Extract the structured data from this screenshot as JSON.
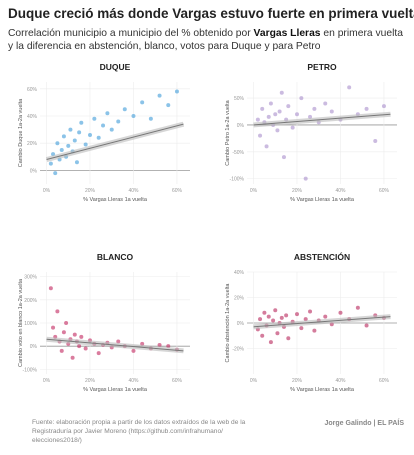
{
  "header": {
    "title": "Duque creció más donde Vargas estuvo fuerte en primera vuelta",
    "subtitle": [
      "Correlación municipio a municipio del % obtenido por ",
      "Vargas Lleras",
      " en primera vuelta y la diferencia en abstención, blanco, votos para Duque y para Petro"
    ]
  },
  "chart_data": [
    {
      "type": "scatter",
      "title": "DUQUE",
      "xlabel": "% Vargas Lleras 1a vuelta",
      "ylabel": "Cambio Duque 1a-2a vuelta",
      "color": "#3d9bd8",
      "xlim": [
        -3,
        66
      ],
      "ylim": [
        -10,
        65
      ],
      "xticks": [
        {
          "value": 0,
          "label": "0%"
        },
        {
          "value": 20,
          "label": "20%"
        },
        {
          "value": 40,
          "label": "40%"
        },
        {
          "value": 60,
          "label": "60%"
        }
      ],
      "yticks": [
        {
          "value": 0,
          "label": "0%"
        },
        {
          "value": 20,
          "label": "20%"
        },
        {
          "value": 40,
          "label": "40%"
        },
        {
          "value": 60,
          "label": "60%"
        }
      ],
      "x": [
        2,
        3,
        4,
        5,
        6,
        7,
        8,
        9,
        10,
        11,
        12,
        13,
        14,
        15,
        16,
        18,
        20,
        22,
        24,
        26,
        28,
        30,
        33,
        36,
        40,
        44,
        48,
        52,
        56,
        60
      ],
      "y": [
        5,
        12,
        -2,
        20,
        8,
        15,
        25,
        10,
        18,
        30,
        14,
        22,
        6,
        28,
        35,
        19,
        26,
        38,
        24,
        33,
        42,
        30,
        36,
        45,
        40,
        50,
        38,
        55,
        48,
        58
      ],
      "trend": {
        "x": [
          0,
          63
        ],
        "y": [
          8,
          34
        ]
      }
    },
    {
      "type": "scatter",
      "title": "PETRO",
      "xlabel": "% Vargas Lleras 1a vuelta",
      "ylabel": "Cambio Petro 1a-2a vuelta",
      "color": "#a98dcb",
      "xlim": [
        -3,
        66
      ],
      "ylim": [
        -110,
        80
      ],
      "xticks": [
        {
          "value": 0,
          "label": "0%"
        },
        {
          "value": 20,
          "label": "20%"
        },
        {
          "value": 40,
          "label": "40%"
        },
        {
          "value": 60,
          "label": "60%"
        }
      ],
      "yticks": [
        {
          "value": -100,
          "label": "-100%"
        },
        {
          "value": -50,
          "label": "-50%"
        },
        {
          "value": 0,
          "label": "0%"
        },
        {
          "value": 50,
          "label": "50%"
        }
      ],
      "x": [
        2,
        3,
        4,
        5,
        6,
        7,
        8,
        9,
        10,
        11,
        12,
        13,
        14,
        15,
        16,
        18,
        20,
        22,
        24,
        26,
        28,
        30,
        33,
        36,
        40,
        44,
        48,
        52,
        56,
        60
      ],
      "y": [
        10,
        -20,
        30,
        5,
        -40,
        15,
        40,
        0,
        20,
        -10,
        25,
        60,
        -60,
        10,
        35,
        -5,
        20,
        50,
        -100,
        15,
        30,
        5,
        40,
        25,
        10,
        70,
        20,
        30,
        -30,
        35
      ],
      "trend": {
        "x": [
          0,
          63
        ],
        "y": [
          0,
          20
        ]
      }
    },
    {
      "type": "scatter",
      "title": "BLANCO",
      "xlabel": "% Vargas Lleras 1a vuelta",
      "ylabel": "Cambio voto en blanco 1a-2a vuelta",
      "color": "#c2255e",
      "xlim": [
        -3,
        66
      ],
      "ylim": [
        -120,
        320
      ],
      "xticks": [
        {
          "value": 0,
          "label": "0%"
        },
        {
          "value": 20,
          "label": "20%"
        },
        {
          "value": 40,
          "label": "40%"
        },
        {
          "value": 60,
          "label": "60%"
        }
      ],
      "yticks": [
        {
          "value": -100,
          "label": "-100%"
        },
        {
          "value": 0,
          "label": "0%"
        },
        {
          "value": 100,
          "label": "100%"
        },
        {
          "value": 200,
          "label": "200%"
        },
        {
          "value": 300,
          "label": "300%"
        }
      ],
      "x": [
        2,
        3,
        4,
        5,
        6,
        7,
        8,
        9,
        10,
        11,
        12,
        13,
        14,
        15,
        16,
        18,
        20,
        22,
        24,
        26,
        28,
        30,
        33,
        36,
        40,
        44,
        48,
        52,
        56,
        60
      ],
      "y": [
        250,
        80,
        40,
        150,
        20,
        -20,
        60,
        100,
        10,
        30,
        -50,
        50,
        20,
        0,
        40,
        -10,
        25,
        10,
        -30,
        5,
        15,
        -5,
        20,
        0,
        -20,
        10,
        -10,
        5,
        0,
        -15
      ],
      "trend": {
        "x": [
          0,
          63
        ],
        "y": [
          30,
          -20
        ]
      }
    },
    {
      "type": "scatter",
      "title": "ABSTENCIÓN",
      "xlabel": "% Vargas Lleras 1a vuelta",
      "ylabel": "Cambio abstención 1a-2a vuelta",
      "color": "#b8245a",
      "xlim": [
        -3,
        66
      ],
      "ylim": [
        -40,
        40
      ],
      "xticks": [
        {
          "value": 0,
          "label": "0%"
        },
        {
          "value": 20,
          "label": "20%"
        },
        {
          "value": 40,
          "label": "40%"
        },
        {
          "value": 60,
          "label": "60%"
        }
      ],
      "yticks": [
        {
          "value": -20,
          "label": "-20%"
        },
        {
          "value": 0,
          "label": "0%"
        },
        {
          "value": 20,
          "label": "20%"
        },
        {
          "value": 40,
          "label": "40%"
        }
      ],
      "x": [
        2,
        3,
        4,
        5,
        6,
        7,
        8,
        9,
        10,
        11,
        12,
        13,
        14,
        15,
        16,
        18,
        20,
        22,
        24,
        26,
        28,
        30,
        33,
        36,
        40,
        44,
        48,
        52,
        56,
        60
      ],
      "y": [
        -5,
        3,
        -10,
        8,
        -2,
        5,
        -15,
        2,
        10,
        -8,
        0,
        4,
        -3,
        6,
        -12,
        1,
        7,
        -4,
        3,
        9,
        -6,
        2,
        5,
        -1,
        8,
        3,
        12,
        -2,
        6,
        4
      ],
      "trend": {
        "x": [
          0,
          63
        ],
        "y": [
          -3,
          5
        ]
      }
    }
  ],
  "footer": {
    "source": "Fuente: elaboración propia a partir de los datos extraídos de la web de la Registraduría por Javier Moreno (https://github.com/infrahumano/ elecciones2018/)",
    "credit": "Jorge Galindo | EL PAÍS"
  }
}
